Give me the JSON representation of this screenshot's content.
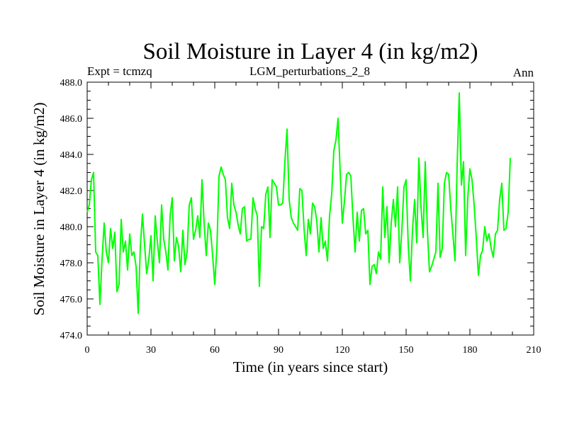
{
  "chart_data": {
    "type": "line",
    "title": "Soil Moisture in Layer 4 (in kg/m2)",
    "subtitle_left": "Expt = tcmzq",
    "subtitle_center": "LGM_perturbations_2_8",
    "subtitle_right": "Ann",
    "xlabel": "Time (in years since start)",
    "ylabel": "Soil Moisture in Layer 4 (in kg/m2)",
    "xlim": [
      0,
      210
    ],
    "ylim": [
      474,
      488
    ],
    "xticks": [
      0,
      30,
      60,
      90,
      120,
      150,
      180,
      210
    ],
    "xtick_labels": [
      "0",
      "30",
      "60",
      "90",
      "120",
      "150",
      "180",
      "210"
    ],
    "yticks": [
      474,
      476,
      478,
      480,
      482,
      484,
      486,
      488
    ],
    "ytick_labels": [
      "474.0",
      "476.0",
      "478.0",
      "480.0",
      "482.0",
      "484.0",
      "486.0",
      "488.0"
    ],
    "line_color": "#00ff00",
    "series": [
      {
        "name": "tcmzq",
        "x": [
          0,
          1,
          2,
          3,
          4,
          5,
          6,
          7,
          8,
          9,
          10,
          11,
          12,
          13,
          14,
          15,
          16,
          17,
          18,
          19,
          20,
          21,
          22,
          23,
          24,
          25,
          26,
          27,
          28,
          29,
          30,
          31,
          32,
          33,
          34,
          35,
          36,
          37,
          38,
          39,
          40,
          41,
          42,
          43,
          44,
          45,
          46,
          47,
          48,
          49,
          50,
          51,
          52,
          53,
          54,
          55,
          56,
          57,
          58,
          59,
          60,
          61,
          62,
          63,
          64,
          65,
          66,
          67,
          68,
          69,
          70,
          71,
          72,
          73,
          74,
          75,
          76,
          77,
          78,
          79,
          80,
          81,
          82,
          83,
          84,
          85,
          86,
          87,
          88,
          89,
          90,
          91,
          92,
          93,
          94,
          95,
          96,
          97,
          98,
          99,
          100,
          101,
          102,
          103,
          104,
          105,
          106,
          107,
          108,
          109,
          110,
          111,
          112,
          113,
          114,
          115,
          116,
          117,
          118,
          119,
          120,
          121,
          122,
          123,
          124,
          125,
          126,
          127,
          128,
          129,
          130,
          131,
          132,
          133,
          134,
          135,
          136,
          137,
          138,
          139,
          140,
          141,
          142,
          143,
          144,
          145,
          146,
          147,
          148,
          149,
          150,
          151,
          152,
          153,
          154,
          155,
          156,
          157,
          158,
          159,
          160,
          161,
          162,
          163,
          164,
          165,
          166,
          167,
          168,
          169,
          170,
          171,
          172,
          173,
          174,
          175,
          176,
          177,
          178,
          179,
          180,
          181,
          182,
          183,
          184,
          185,
          186,
          187,
          188,
          189,
          190,
          191,
          192,
          193,
          194,
          195,
          196,
          197,
          198,
          199
        ],
        "values": [
          480.8,
          481.2,
          482.6,
          483.0,
          478.6,
          478.4,
          475.7,
          478.2,
          480.2,
          478.6,
          478.0,
          479.9,
          478.8,
          479.7,
          476.4,
          476.8,
          480.4,
          478.6,
          479.2,
          477.6,
          479.6,
          478.4,
          478.6,
          477.8,
          475.2,
          478.9,
          480.7,
          479.0,
          477.4,
          478.2,
          479.5,
          477.0,
          480.6,
          479.2,
          478.0,
          481.2,
          479.3,
          478.6,
          477.6,
          480.6,
          481.6,
          478.1,
          479.4,
          478.9,
          477.5,
          479.8,
          477.9,
          478.6,
          481.2,
          481.6,
          479.3,
          479.8,
          480.6,
          479.4,
          482.6,
          480.2,
          478.4,
          480.2,
          479.8,
          478.4,
          476.8,
          478.8,
          482.8,
          483.3,
          482.9,
          482.6,
          480.5,
          479.9,
          482.4,
          481.2,
          480.8,
          480.1,
          479.6,
          481.0,
          481.1,
          479.2,
          479.3,
          479.3,
          481.6,
          481.0,
          480.6,
          476.7,
          480.0,
          479.9,
          481.8,
          482.2,
          479.4,
          482.6,
          482.4,
          482.2,
          481.2,
          481.2,
          481.3,
          483.6,
          485.4,
          481.5,
          480.5,
          480.2,
          480.0,
          479.8,
          482.1,
          482.0,
          479.9,
          478.4,
          480.4,
          479.6,
          481.3,
          481.1,
          480.3,
          478.6,
          480.5,
          478.8,
          479.2,
          478.1,
          480.6,
          481.8,
          484.2,
          484.8,
          486.0,
          483.0,
          480.2,
          481.4,
          482.9,
          483.0,
          482.8,
          480.5,
          478.6,
          480.8,
          479.2,
          480.9,
          481.0,
          479.6,
          479.8,
          476.8,
          477.8,
          477.9,
          477.4,
          478.6,
          478.2,
          482.2,
          479.4,
          481.1,
          478.0,
          480.2,
          481.5,
          480.0,
          482.2,
          478.0,
          479.8,
          482.2,
          482.6,
          479.0,
          477.0,
          479.8,
          481.5,
          479.1,
          483.8,
          481.1,
          479.4,
          483.6,
          479.8,
          477.5,
          477.8,
          478.2,
          478.6,
          482.4,
          478.3,
          478.8,
          482.4,
          483.0,
          482.9,
          481.0,
          479.6,
          478.1,
          483.4,
          487.4,
          482.3,
          483.6,
          478.4,
          481.6,
          483.2,
          482.6,
          481.2,
          479.4,
          477.3,
          478.4,
          478.7,
          480.0,
          479.2,
          479.6,
          478.8,
          478.3,
          479.6,
          479.8,
          481.5,
          482.4,
          479.8,
          479.9,
          480.8,
          483.8
        ]
      }
    ]
  }
}
